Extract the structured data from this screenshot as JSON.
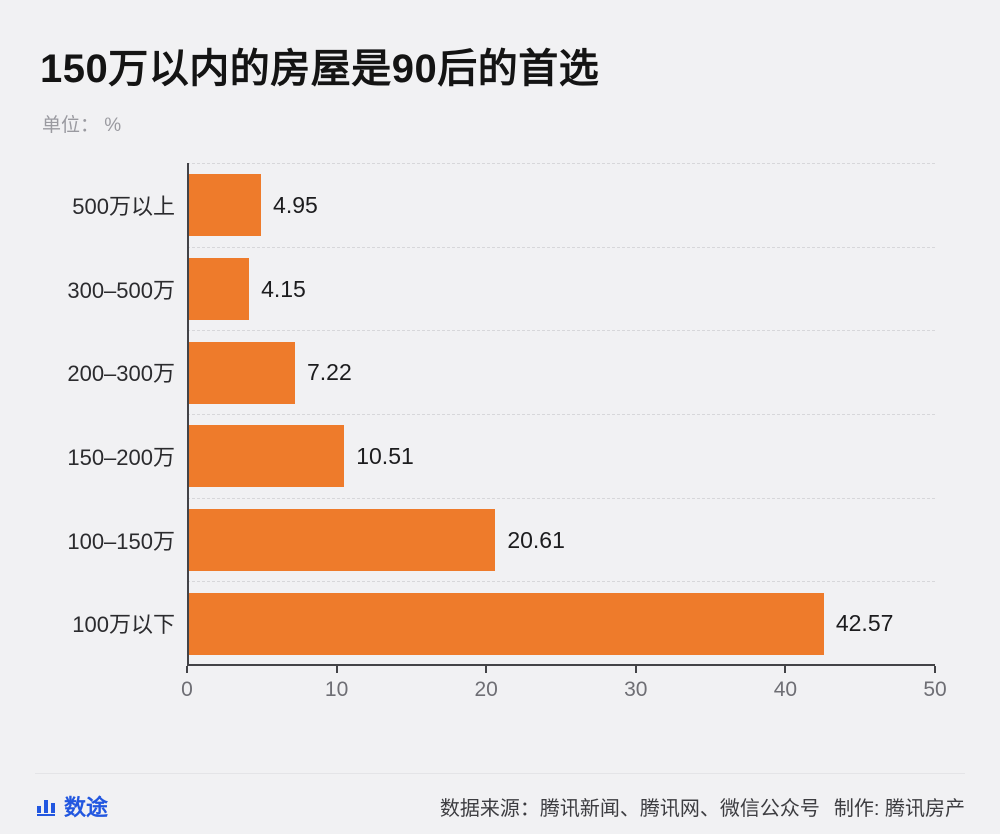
{
  "title": "150万以内的房屋是90后的首选",
  "subtitle": "单位： %",
  "chart_data": {
    "type": "bar",
    "orientation": "horizontal",
    "title": "150万以内的房屋是90后的首选",
    "unit": "%",
    "categories": [
      "500万以上",
      "300–500万",
      "200–300万",
      "150–200万",
      "100–150万",
      "100万以下"
    ],
    "values": [
      4.95,
      4.15,
      7.22,
      10.51,
      20.61,
      42.57
    ],
    "value_labels": [
      "4.95",
      "4.15",
      "7.22",
      "10.51",
      "20.61",
      "42.57"
    ],
    "xlabel": "",
    "ylabel": "",
    "xlim": [
      0,
      50
    ],
    "x_ticks": [
      "0",
      "10",
      "20",
      "30",
      "40",
      "50"
    ],
    "grid": "dashed-horizontal",
    "legend": "none",
    "bar_color": "#ee7b2b",
    "background_color": "#f1f1f3"
  },
  "footer": {
    "logo_text": "数途",
    "source_text": "数据来源：腾讯新闻、腾讯网、微信公众号",
    "maker_text": "制作: 腾讯房产"
  }
}
